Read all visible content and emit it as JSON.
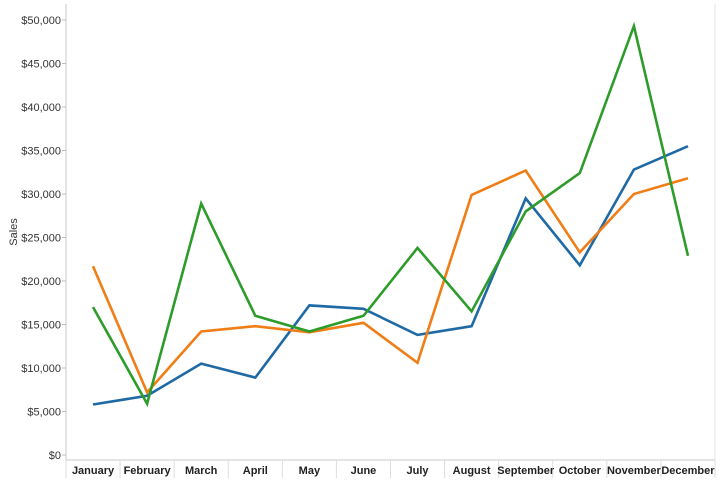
{
  "chart_data": {
    "type": "line",
    "ylabel": "Sales",
    "xlabel": "",
    "ylim": [
      0,
      50000
    ],
    "y_ticks": [
      0,
      5000,
      10000,
      15000,
      20000,
      25000,
      30000,
      35000,
      40000,
      45000,
      50000
    ],
    "y_tick_labels": [
      "$0",
      "$5,000",
      "$10,000",
      "$15,000",
      "$20,000",
      "$25,000",
      "$30,000",
      "$35,000",
      "$40,000",
      "$45,000",
      "$50,000"
    ],
    "grid": false,
    "legend": "none",
    "categories": [
      "January",
      "February",
      "March",
      "April",
      "May",
      "June",
      "July",
      "August",
      "September",
      "October",
      "November",
      "December"
    ],
    "series": [
      {
        "color": "#1f6aa5",
        "values": [
          5800,
          6800,
          10500,
          8900,
          17200,
          16800,
          13800,
          14800,
          29500,
          21800,
          32800,
          35500
        ]
      },
      {
        "color": "#f07d15",
        "values": [
          21700,
          7200,
          14200,
          14800,
          14100,
          15200,
          10600,
          29900,
          32700,
          23300,
          30000,
          31800
        ]
      },
      {
        "color": "#2e9c2b",
        "values": [
          17000,
          5900,
          28900,
          16000,
          14200,
          16000,
          23800,
          16500,
          28000,
          32400,
          49300,
          22900
        ]
      }
    ]
  }
}
